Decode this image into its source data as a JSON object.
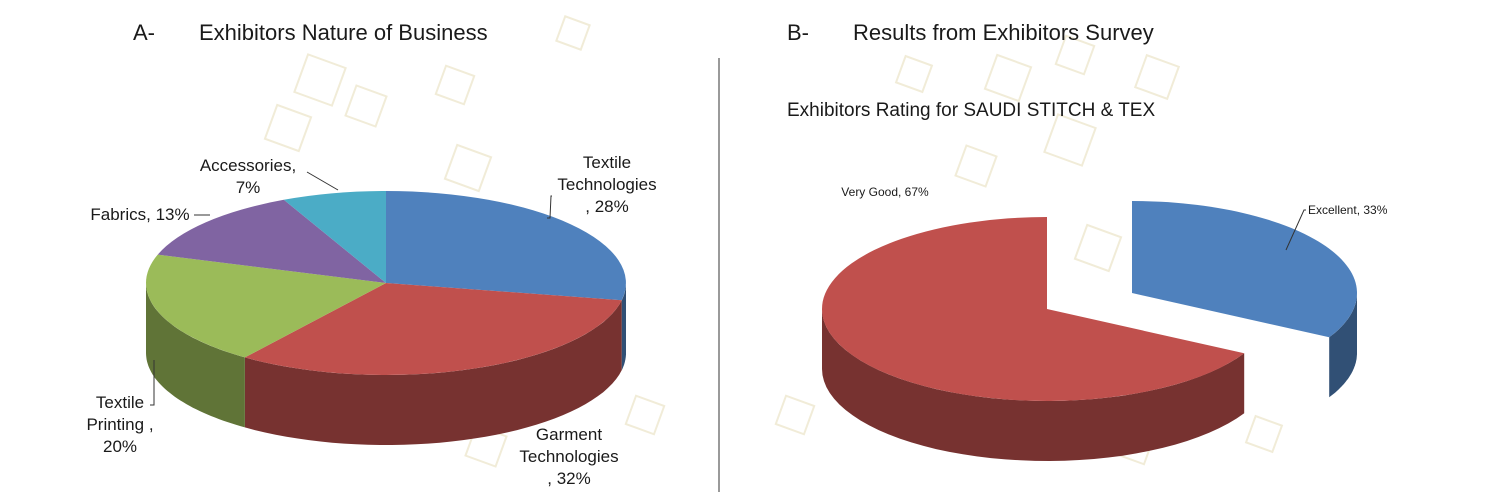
{
  "panel_a": {
    "letter": "A-",
    "heading": "Exhibitors Nature of Business"
  },
  "panel_b": {
    "letter": "B-",
    "heading": "Results from Exhibitors Survey",
    "subtitle": "Exhibitors Rating for SAUDI STITCH & TEX"
  },
  "chart_data": [
    {
      "type": "pie",
      "style": "3d",
      "categories": [
        "Textile Technologies",
        "Garment Technologies",
        "Textile Printing",
        "Fabrics",
        "Accessories"
      ],
      "values": [
        28,
        32,
        20,
        13,
        7
      ],
      "unit": "%",
      "colors": [
        "#4f81bd",
        "#c0504d",
        "#9bbb59",
        "#8064a2",
        "#4bacc6"
      ],
      "labels": [
        [
          "Textile",
          "Technologies",
          ", 28%"
        ],
        [
          "Garment",
          "Technologies",
          ", 32%"
        ],
        [
          "Textile",
          "Printing ,",
          "20%"
        ],
        [
          "Fabrics, 13%"
        ],
        [
          "Accessories,",
          "7%"
        ]
      ]
    },
    {
      "type": "pie",
      "style": "3d-exploded",
      "categories": [
        "Excellent",
        "Very Good"
      ],
      "values": [
        33,
        67
      ],
      "unit": "%",
      "colors": [
        "#4f81bd",
        "#c0504d"
      ],
      "labels": [
        [
          "Excellent, 33%"
        ],
        [
          "Very Good, 67%"
        ]
      ]
    }
  ]
}
